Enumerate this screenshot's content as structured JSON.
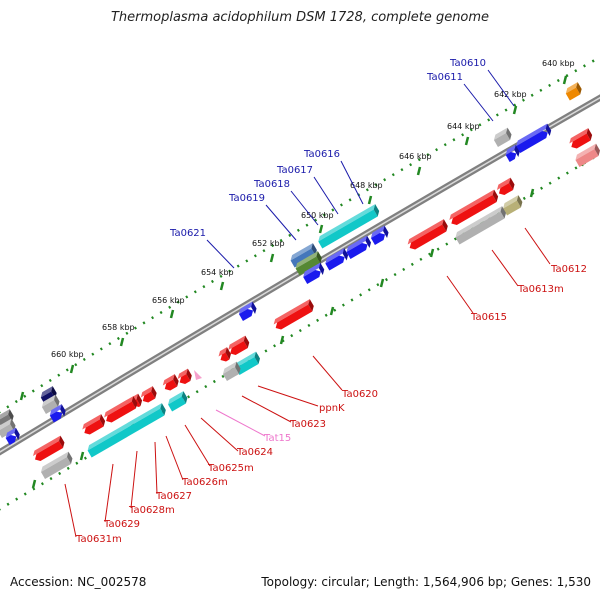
{
  "title": "Thermoplasma acidophilum DSM 1728, complete genome",
  "footer": {
    "accession": "Accession: NC_002578",
    "summary": "Topology: circular; Length: 1,564,906 bp; Genes: 1,530"
  },
  "colors": {
    "backbone": "#777777",
    "ruler": "#228822",
    "forward_label": "#1a1aaa",
    "reverse_label": "#cc1111",
    "rna_label": "#ee77cc"
  },
  "kbp_labels": [
    "640 kbp",
    "642 kbp",
    "644 kbp",
    "646 kbp",
    "648 kbp",
    "650 kbp",
    "652 kbp",
    "654 kbp",
    "656 kbp",
    "658 kbp",
    "660 kbp"
  ],
  "forward_genes": [
    "Ta0610",
    "Ta0611",
    "Ta0616",
    "Ta0617",
    "Ta0618",
    "Ta0619",
    "Ta0621"
  ],
  "reverse_genes": [
    "Ta0612",
    "Ta0613m",
    "Ta0615",
    "Ta0620",
    "ppnK",
    "Ta0623",
    "Tat15",
    "Ta0624",
    "Ta0625m",
    "Ta0626m",
    "Ta0627",
    "Ta0628m",
    "Ta0629",
    "Ta0631m"
  ]
}
